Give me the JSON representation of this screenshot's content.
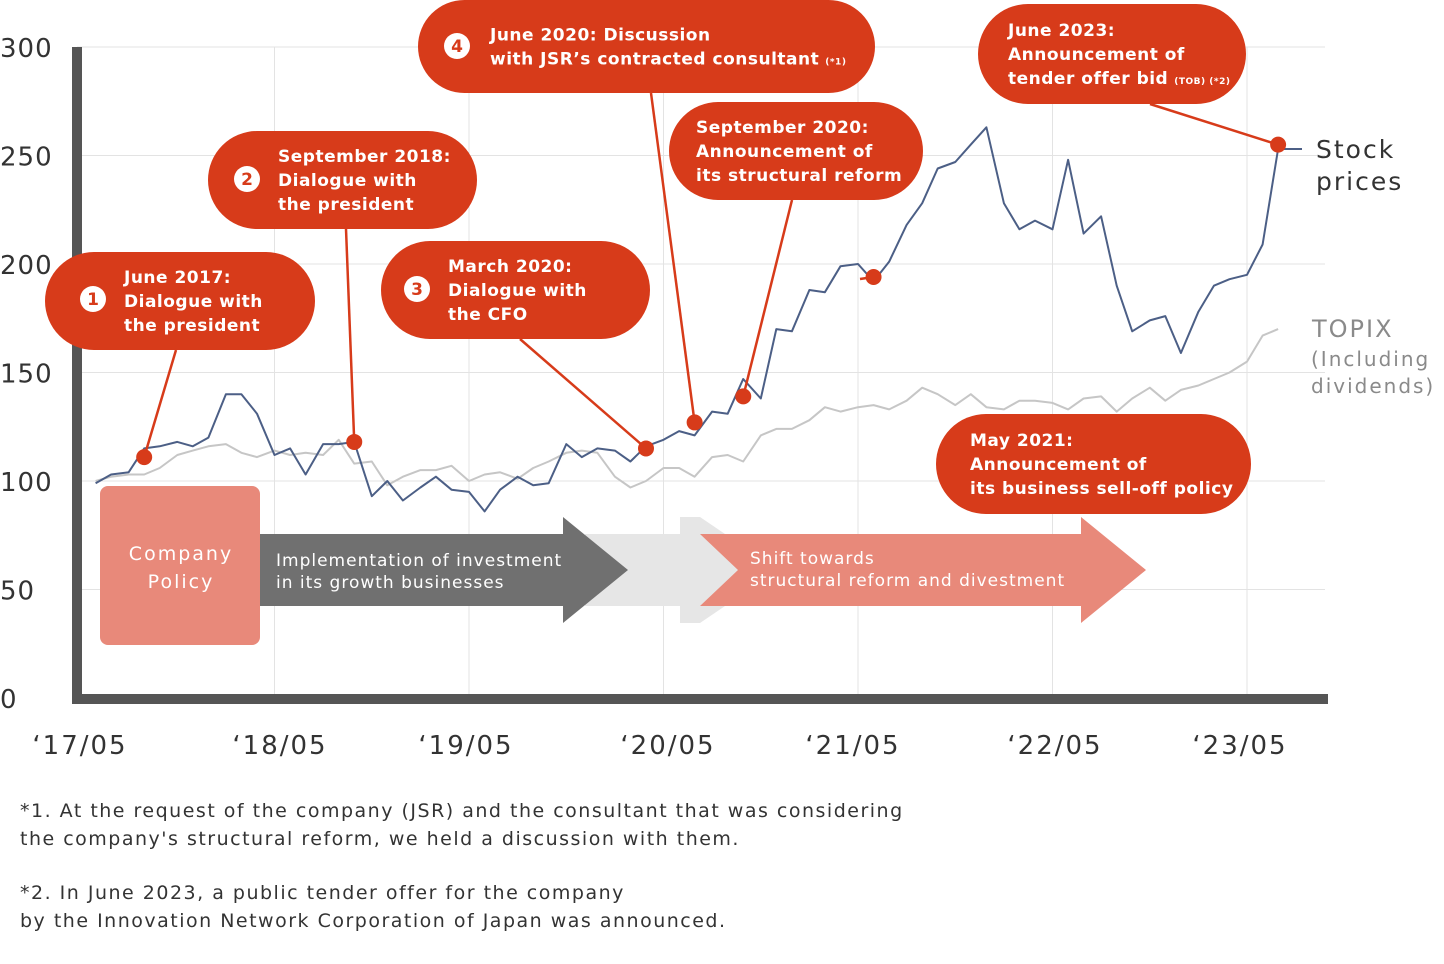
{
  "chart_data": {
    "type": "line",
    "ylim": [
      0,
      300
    ],
    "yticks": [
      0,
      50,
      100,
      150,
      200,
      250,
      300
    ],
    "xticks": [
      "‘17/05",
      "‘18/05",
      "‘19/05",
      "‘20/05",
      "‘21/05",
      "‘22/05",
      "‘23/05"
    ],
    "grid": "horizontal and vertical",
    "series": [
      {
        "name_lines": [
          "Stock",
          "prices"
        ],
        "color": "#4C5F86",
        "x": [
          2017.33,
          2017.41,
          2017.5,
          2017.58,
          2017.66,
          2017.75,
          2017.83,
          2017.91,
          2018.0,
          2018.08,
          2018.16,
          2018.25,
          2018.33,
          2018.41,
          2018.5,
          2018.58,
          2018.66,
          2018.75,
          2018.83,
          2018.91,
          2019.0,
          2019.08,
          2019.16,
          2019.25,
          2019.33,
          2019.41,
          2019.5,
          2019.58,
          2019.66,
          2019.75,
          2019.83,
          2019.91,
          2020.0,
          2020.08,
          2020.16,
          2020.25,
          2020.33,
          2020.41,
          2020.5,
          2020.58,
          2020.66,
          2020.75,
          2020.83,
          2020.91,
          2021.0,
          2021.08,
          2021.16,
          2021.25,
          2021.33,
          2021.41,
          2021.5,
          2021.58,
          2021.66,
          2021.75,
          2021.83,
          2021.91,
          2022.0,
          2022.08,
          2022.16,
          2022.25,
          2022.33,
          2022.41,
          2022.5,
          2022.58,
          2022.66,
          2022.75,
          2022.83,
          2022.91,
          2023.0,
          2023.08,
          2023.16,
          2023.25,
          2023.33,
          2023.41
        ],
        "y": [
          99,
          103,
          104,
          115,
          116,
          118,
          116,
          120,
          140,
          140,
          131,
          112,
          115,
          103,
          117,
          117,
          118,
          93,
          100,
          91,
          97,
          102,
          96,
          95,
          86,
          96,
          102,
          98,
          99,
          117,
          111,
          115,
          114,
          109,
          116,
          119,
          123,
          121,
          132,
          131,
          147,
          138,
          170,
          169,
          188,
          187,
          199,
          200,
          192,
          201,
          218,
          228,
          244,
          247,
          255,
          263,
          228,
          216,
          220,
          216,
          248,
          214,
          222,
          190,
          169,
          174,
          176,
          159,
          178,
          190,
          193,
          195,
          209,
          253
        ]
      },
      {
        "name": "TOPIX",
        "sub_lines": [
          "(Including",
          "dividends)"
        ],
        "color": "#C6C6C6",
        "x": [
          2017.33,
          2017.41,
          2017.5,
          2017.58,
          2017.66,
          2017.75,
          2017.83,
          2017.91,
          2018.0,
          2018.08,
          2018.16,
          2018.25,
          2018.33,
          2018.41,
          2018.5,
          2018.58,
          2018.66,
          2018.75,
          2018.83,
          2018.91,
          2019.0,
          2019.08,
          2019.16,
          2019.25,
          2019.33,
          2019.41,
          2019.5,
          2019.58,
          2019.66,
          2019.75,
          2019.83,
          2019.91,
          2020.0,
          2020.08,
          2020.16,
          2020.25,
          2020.33,
          2020.41,
          2020.5,
          2020.58,
          2020.66,
          2020.75,
          2020.83,
          2020.91,
          2021.0,
          2021.08,
          2021.16,
          2021.25,
          2021.33,
          2021.41,
          2021.5,
          2021.58,
          2021.66,
          2021.75,
          2021.83,
          2021.91,
          2022.0,
          2022.08,
          2022.16,
          2022.25,
          2022.33,
          2022.41,
          2022.5,
          2022.58,
          2022.66,
          2022.75,
          2022.83,
          2022.91,
          2023.0,
          2023.08,
          2023.16,
          2023.25,
          2023.33,
          2023.41
        ],
        "y": [
          100,
          102,
          103,
          103,
          106,
          112,
          114,
          116,
          117,
          113,
          111,
          114,
          112,
          113,
          112,
          119,
          108,
          109,
          98,
          102,
          105,
          105,
          107,
          100,
          103,
          104,
          101,
          106,
          109,
          113,
          114,
          113,
          102,
          97,
          100,
          106,
          106,
          102,
          111,
          112,
          109,
          121,
          124,
          124,
          128,
          134,
          132,
          134,
          135,
          133,
          137,
          143,
          140,
          135,
          140,
          134,
          133,
          137,
          137,
          136,
          133,
          138,
          139,
          132,
          138,
          143,
          137,
          142,
          144,
          147,
          150,
          155,
          167,
          170
        ]
      }
    ],
    "annotations": [
      {
        "num": "1",
        "lines": [
          "June 2017:",
          "Dialogue with",
          "the president"
        ],
        "x": 2017.58,
        "y": 111
      },
      {
        "num": "2",
        "lines": [
          "September 2018:",
          "Dialogue with",
          "the president"
        ],
        "x": 2018.66,
        "y": 118
      },
      {
        "num": "3",
        "lines": [
          "March 2020:",
          "Dialogue with",
          "the CFO"
        ],
        "x": 2020.16,
        "y": 115
      },
      {
        "num": "4",
        "lines": [
          "June 2020: Discussion",
          "with JSR’s contracted consultant"
        ],
        "sup": "(*1)",
        "x": 2020.41,
        "y": 127
      },
      {
        "num": "",
        "lines": [
          "September 2020:",
          "Announcement of",
          "its structural reform"
        ],
        "x": 2020.66,
        "y": 139
      },
      {
        "num": "",
        "lines": [
          "May 2021:",
          "Announcement of",
          "its business sell-off policy"
        ],
        "x": 2021.33,
        "y": 194
      },
      {
        "num": "",
        "lines": [
          "June 2023:",
          "Announcement of",
          "tender offer bid"
        ],
        "sup": "(TOB) (*2)",
        "x": 2023.41,
        "y": 255
      }
    ],
    "policy": {
      "label_lines": [
        "Company",
        "Policy"
      ],
      "phase1_lines": [
        "Implementation of investment",
        "in its growth businesses"
      ],
      "phase2_lines": [
        "Shift towards",
        "structural reform and divestment"
      ],
      "colors": {
        "policy": "#E8897A",
        "phase1": "#707070",
        "transition": "#E6E6E6",
        "phase2": "#E8897A"
      }
    }
  },
  "notes": [
    {
      "lines": [
        "*1. At the request of the company (JSR) and the consultant that was considering",
        "the company's structural reform, we held a discussion with them."
      ]
    },
    {
      "lines": [
        "*2. In June 2023, a public tender offer for the company",
        "by the Innovation Network Corporation of Japan was announced."
      ]
    }
  ],
  "colors": {
    "accent": "#D73B1A",
    "axis": "#555555",
    "grid": "#E3E3E3"
  }
}
